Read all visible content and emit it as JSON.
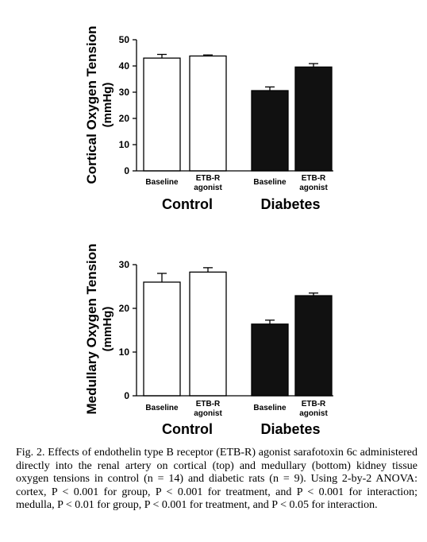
{
  "chart_data": [
    {
      "type": "bar",
      "ylabel": "Cortical Oxygen Tension",
      "yunit": "(mmHg)",
      "ylim": [
        0,
        50
      ],
      "yticks": [
        0,
        10,
        20,
        30,
        40,
        50
      ],
      "categories": [
        "Baseline",
        "ETB-R agonist",
        "Baseline",
        "ETB-R agonist"
      ],
      "groups": [
        "Control",
        "Diabetes"
      ],
      "values": [
        43.0,
        43.8,
        30.6,
        39.6
      ],
      "errors": [
        1.4,
        0.4,
        1.4,
        1.3
      ],
      "fills": [
        "#ffffff",
        "#ffffff",
        "#111111",
        "#111111"
      ]
    },
    {
      "type": "bar",
      "ylabel": "Medullary Oxygen Tension",
      "yunit": "(mmHg)",
      "ylim": [
        0,
        30
      ],
      "yticks": [
        0,
        10,
        20,
        30
      ],
      "categories": [
        "Baseline",
        "ETB-R agonist",
        "Baseline",
        "ETB-R agonist"
      ],
      "groups": [
        "Control",
        "Diabetes"
      ],
      "values": [
        26.0,
        28.3,
        16.4,
        22.9
      ],
      "errors": [
        2.0,
        1.0,
        0.9,
        0.6
      ],
      "fills": [
        "#ffffff",
        "#ffffff",
        "#111111",
        "#111111"
      ]
    }
  ],
  "caption": {
    "text": "Fig. 2. Effects of endothelin type B receptor (ETB-R) agonist sarafotoxin 6c administered directly into the renal artery on cortical (top) and medullary (bottom) kidney tissue oxygen tensions in control (n = 14) and diabetic rats (n = 9). Using 2-by-2 ANOVA: cortex, P < 0.001 for group, P < 0.001 for treatment, and P < 0.001 for interaction; medulla, P < 0.01 for group, P < 0.001 for treatment, and P < 0.05 for interaction."
  }
}
